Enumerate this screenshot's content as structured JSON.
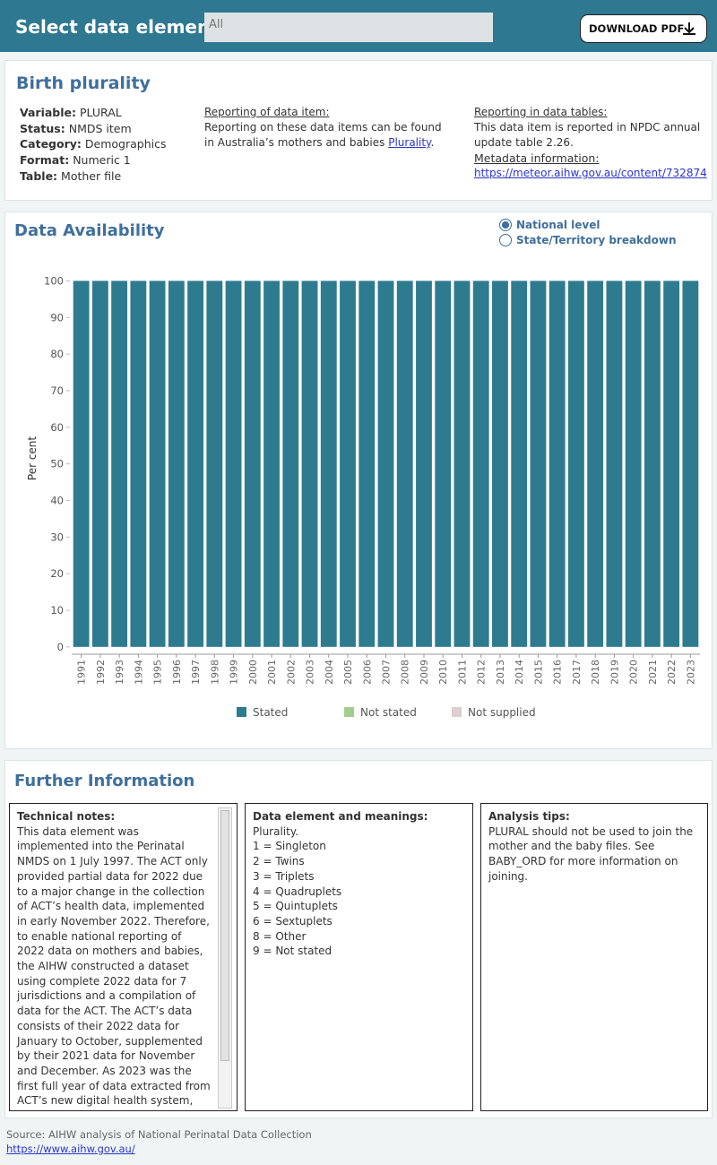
{
  "header": {
    "label": "Select data element:",
    "selected": "All",
    "button": "DOWNLOAD PDF"
  },
  "item": {
    "title": "Birth plurality",
    "fields": [
      {
        "label": "Variable:",
        "value": "PLURAL"
      },
      {
        "label": "Status:",
        "value": "NMDS item"
      },
      {
        "label": "Category:",
        "value": "Demographics"
      },
      {
        "label": "Format:",
        "value": "Numeric 1"
      },
      {
        "label": "Table:",
        "value": "Mother file"
      }
    ],
    "reporting_heading": "Reporting of data item:",
    "reporting_text": "Reporting on these data items can be found in Australia’s mothers and babies",
    "reporting_link": "Plurality",
    "tables_heading": "Reporting in data tables:",
    "tables_text": "This data item is reported in NPDC annual update table 2.26.",
    "metadata_heading": "Metadata information:",
    "metadata_link": "https://meteor.aihw.gov.au/content/732874"
  },
  "availability": {
    "title": "Data Availability",
    "options": [
      "National level",
      "State/Territory breakdown"
    ],
    "selected_option": "National level"
  },
  "chart_data": {
    "type": "stacked_bar",
    "y_label": "Per cent",
    "categories": [
      "1991",
      "1992",
      "1993",
      "1994",
      "1995",
      "1996",
      "1997",
      "1998",
      "1999",
      "2000",
      "2001",
      "2002",
      "2003",
      "2004",
      "2005",
      "2006",
      "2007",
      "2008",
      "2009",
      "2010",
      "2011",
      "2012",
      "2013",
      "2014",
      "2015",
      "2016",
      "2017",
      "2018",
      "2019",
      "2020",
      "2021",
      "2022",
      "2023"
    ],
    "series": [
      {
        "name": "Stated",
        "color": "#2e7b90",
        "values": [
          100,
          100,
          100,
          100,
          100,
          100,
          100,
          100,
          100,
          100,
          100,
          100,
          100,
          100,
          100,
          100,
          100,
          100,
          100,
          100,
          100,
          100,
          100,
          100,
          100,
          100,
          100,
          100,
          100,
          100,
          100,
          100,
          100
        ]
      },
      {
        "name": "Not stated",
        "color": "#a3cd8f",
        "values": [
          0,
          0,
          0,
          0,
          0,
          0,
          0,
          0,
          0,
          0,
          0,
          0,
          0,
          0,
          0,
          0,
          0,
          0,
          0,
          0,
          0,
          0,
          0,
          0,
          0,
          0,
          0,
          0,
          0,
          0,
          0,
          0,
          0
        ]
      },
      {
        "name": "Not supplied",
        "color": "#dbcfcf",
        "values": [
          0,
          0,
          0,
          0,
          0,
          0,
          0,
          0,
          0,
          0,
          0,
          0,
          0,
          0,
          0,
          0,
          0,
          0,
          0,
          0,
          0,
          0,
          0,
          0,
          0,
          0,
          0,
          0,
          0,
          0,
          0,
          0,
          0
        ]
      }
    ],
    "ylim": [
      -2,
      105
    ],
    "yticks": [
      0,
      10,
      20,
      30,
      40,
      50,
      60,
      70,
      80,
      90,
      100
    ],
    "grid": false,
    "legend": "bottom"
  },
  "further": {
    "title": "Further Information",
    "technical_heading": "Technical notes:",
    "technical_text": "This data element was implemented into the Perinatal NMDS on 1 July 1997. The ACT only provided partial data for 2022 due to a major change in the collection of ACT’s health data, implemented in early November 2022. Therefore, to enable national reporting of 2022 data on mothers and babies, the AIHW constructed a dataset using complete 2022 data for 7 jurisdictions and a compilation of data for the ACT. The ACT’s data consists of their 2022 data for January to October, supplemented by their 2021 data for November and December. As 2023 was the first full year of data extracted from ACT’s new digital health system, some of ACT’s data are currently",
    "meanings_heading": "Data element and meanings:",
    "meanings": [
      "Plurality.",
      "1 = Singleton",
      "2 = Twins",
      "3 = Triplets",
      "4 = Quadruplets",
      "5 = Quintuplets",
      "6 = Sextuplets",
      "8 = Other",
      "9 = Not stated"
    ],
    "tips_heading": "Analysis tips:",
    "tips_text": "PLURAL should not be used to join the mother and the baby files. See BABY_ORD for more information on joining."
  },
  "footer": {
    "source": "Source: AIHW analysis of National Perinatal Data Collection",
    "link": "https://www.aihw.gov.au/"
  }
}
